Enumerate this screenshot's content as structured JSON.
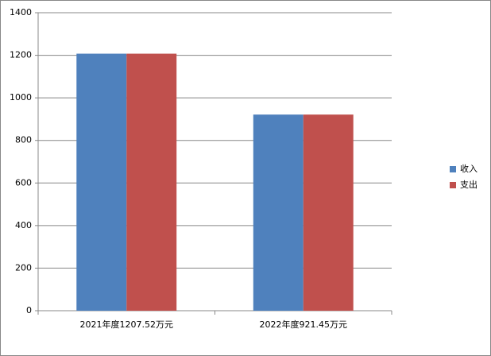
{
  "chart_data": {
    "type": "bar",
    "categories": [
      "2021年度1207.52万元",
      "2022年度921.45万元"
    ],
    "series": [
      {
        "name": "收入",
        "color": "#4f81bd",
        "values": [
          1207.52,
          921.45
        ]
      },
      {
        "name": "支出",
        "color": "#c0504d",
        "values": [
          1207.52,
          921.45
        ]
      }
    ],
    "ylim": [
      0,
      1400
    ],
    "yticks": [
      0,
      200,
      400,
      600,
      800,
      1000,
      1200,
      1400
    ],
    "grid": true,
    "legend": "right"
  }
}
